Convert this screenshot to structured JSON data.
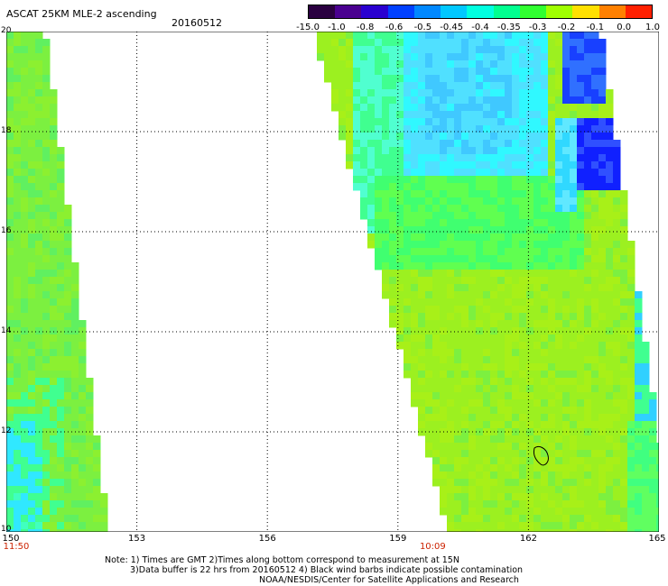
{
  "header": {
    "title": "ASCAT 25KM MLE-2 ascending",
    "date": "20160512"
  },
  "colorbar": {
    "labels": [
      "-15.0",
      "-1.0",
      "-0.8",
      "-0.6",
      "-0.5",
      "-0.45",
      "-0.4",
      "-0.35",
      "-0.3",
      "-0.2",
      "-0.1",
      "0.0",
      "1.0"
    ],
    "colors": [
      "#2a0040",
      "#4a0090",
      "#2a00d0",
      "#0040ff",
      "#0088ff",
      "#00c8ff",
      "#00ffe0",
      "#00ff90",
      "#30ff30",
      "#a0ff00",
      "#ffe000",
      "#ff8000",
      "#ff2000"
    ]
  },
  "map": {
    "lat_labels": [
      "20",
      "18",
      "16",
      "14",
      "12",
      "10"
    ],
    "lon_labels": [
      "150",
      "153",
      "156",
      "159",
      "162",
      "165"
    ],
    "lat_range": [
      10,
      20
    ],
    "lon_range": [
      150,
      165
    ],
    "times": [
      {
        "lon": 150,
        "label": "11:50"
      },
      {
        "lon": 159.8,
        "label": "10:09"
      }
    ],
    "grid": "dotted"
  },
  "notes": {
    "line1": "Note: 1) Times are GMT 2)Times along bottom correspond to measurement at 15N",
    "line2": "3)Data buffer is 22 hrs from 20160512 4) Black wind barbs indicate possible contamination",
    "line3": "NOAA/NESDIS/Center for Satellite Applications and Research"
  }
}
